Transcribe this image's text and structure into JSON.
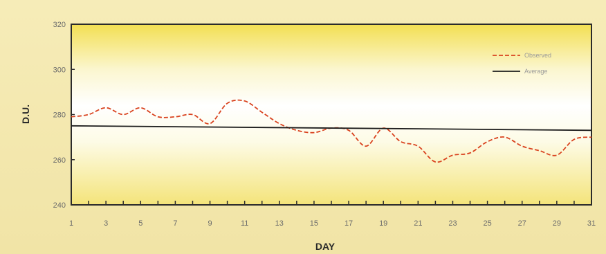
{
  "chart_data": {
    "type": "line",
    "title": "",
    "xlabel": "DAY",
    "ylabel": "D.U.",
    "xlim": [
      1,
      31
    ],
    "ylim": [
      240,
      320
    ],
    "x_ticks": [
      "1",
      "3",
      "5",
      "7",
      "9",
      "11",
      "13",
      "15",
      "17",
      "19",
      "21",
      "23",
      "25",
      "27",
      "29",
      "31"
    ],
    "y_ticks": [
      "240",
      "260",
      "280",
      "300",
      "320"
    ],
    "grid": false,
    "legend_position": "top-right",
    "series": [
      {
        "name": "Observed",
        "style": "dashed",
        "color": "#d9421e",
        "x": [
          1,
          2,
          3,
          4,
          5,
          6,
          7,
          8,
          9,
          10,
          11,
          12,
          13,
          14,
          15,
          16,
          17,
          18,
          19,
          20,
          21,
          22,
          23,
          24,
          25,
          26,
          27,
          28,
          29,
          30,
          31
        ],
        "values": [
          279,
          280,
          283,
          280,
          283,
          279,
          279,
          280,
          276,
          285,
          286,
          281,
          276,
          273,
          272,
          274,
          273,
          266,
          274,
          268,
          266,
          259,
          262,
          263,
          268,
          270,
          266,
          264,
          262,
          269,
          270
        ]
      },
      {
        "name": "Average",
        "style": "solid",
        "color": "#1c1c1c",
        "x": [
          1,
          31
        ],
        "values": [
          275,
          273
        ]
      }
    ]
  }
}
